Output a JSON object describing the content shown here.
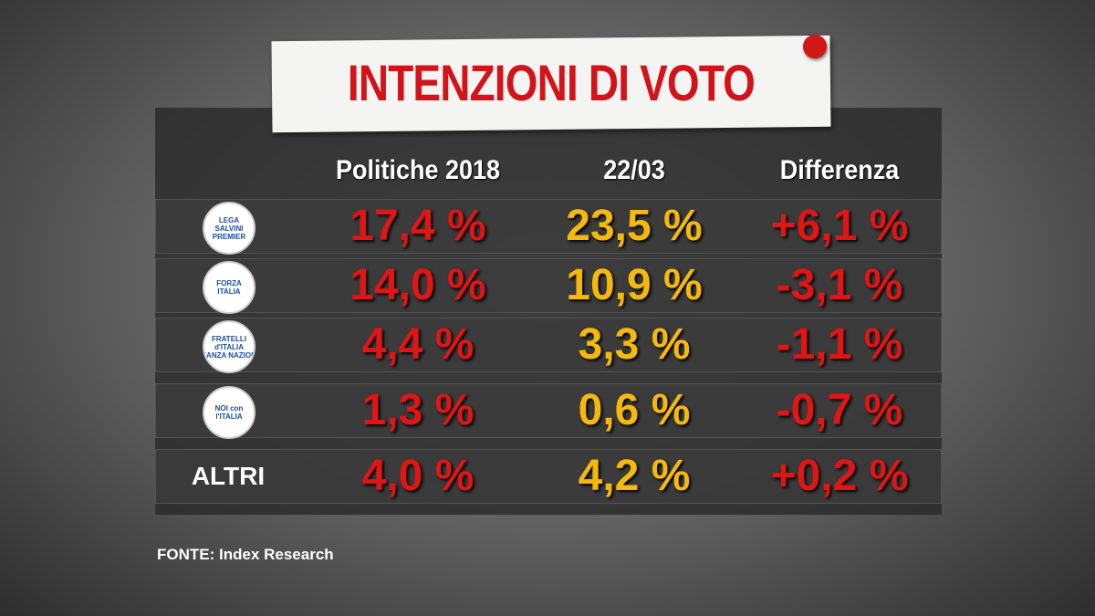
{
  "title": "INTENZIONI DI VOTO",
  "table": {
    "headers": [
      "Politiche 2018",
      "22/03",
      "Differenza"
    ],
    "rows": [
      {
        "logo": [
          "LEGA",
          "SALVINI",
          "PREMIER"
        ],
        "values": [
          "17,4 %",
          "23,5 %",
          "+6,1 %"
        ]
      },
      {
        "logo": [
          "FORZA",
          "ITALIA"
        ],
        "values": [
          "14,0 %",
          "10,9 %",
          "-3,1 %"
        ]
      },
      {
        "logo": [
          "FRATELLI",
          "d'ITALIA",
          "ALLEANZA NAZIONALE"
        ],
        "values": [
          "4,4 %",
          "3,3 %",
          "-1,1 %"
        ]
      },
      {
        "logo": [
          "NOI con",
          "l'ITALIA"
        ],
        "values": [
          "1,3 %",
          "0,6 %",
          "-0,7 %"
        ]
      },
      {
        "label": "ALTRI",
        "values": [
          "4,0 %",
          "4,2 %",
          "+0,2 %"
        ]
      }
    ]
  },
  "source": "FONTE:  Index Research"
}
